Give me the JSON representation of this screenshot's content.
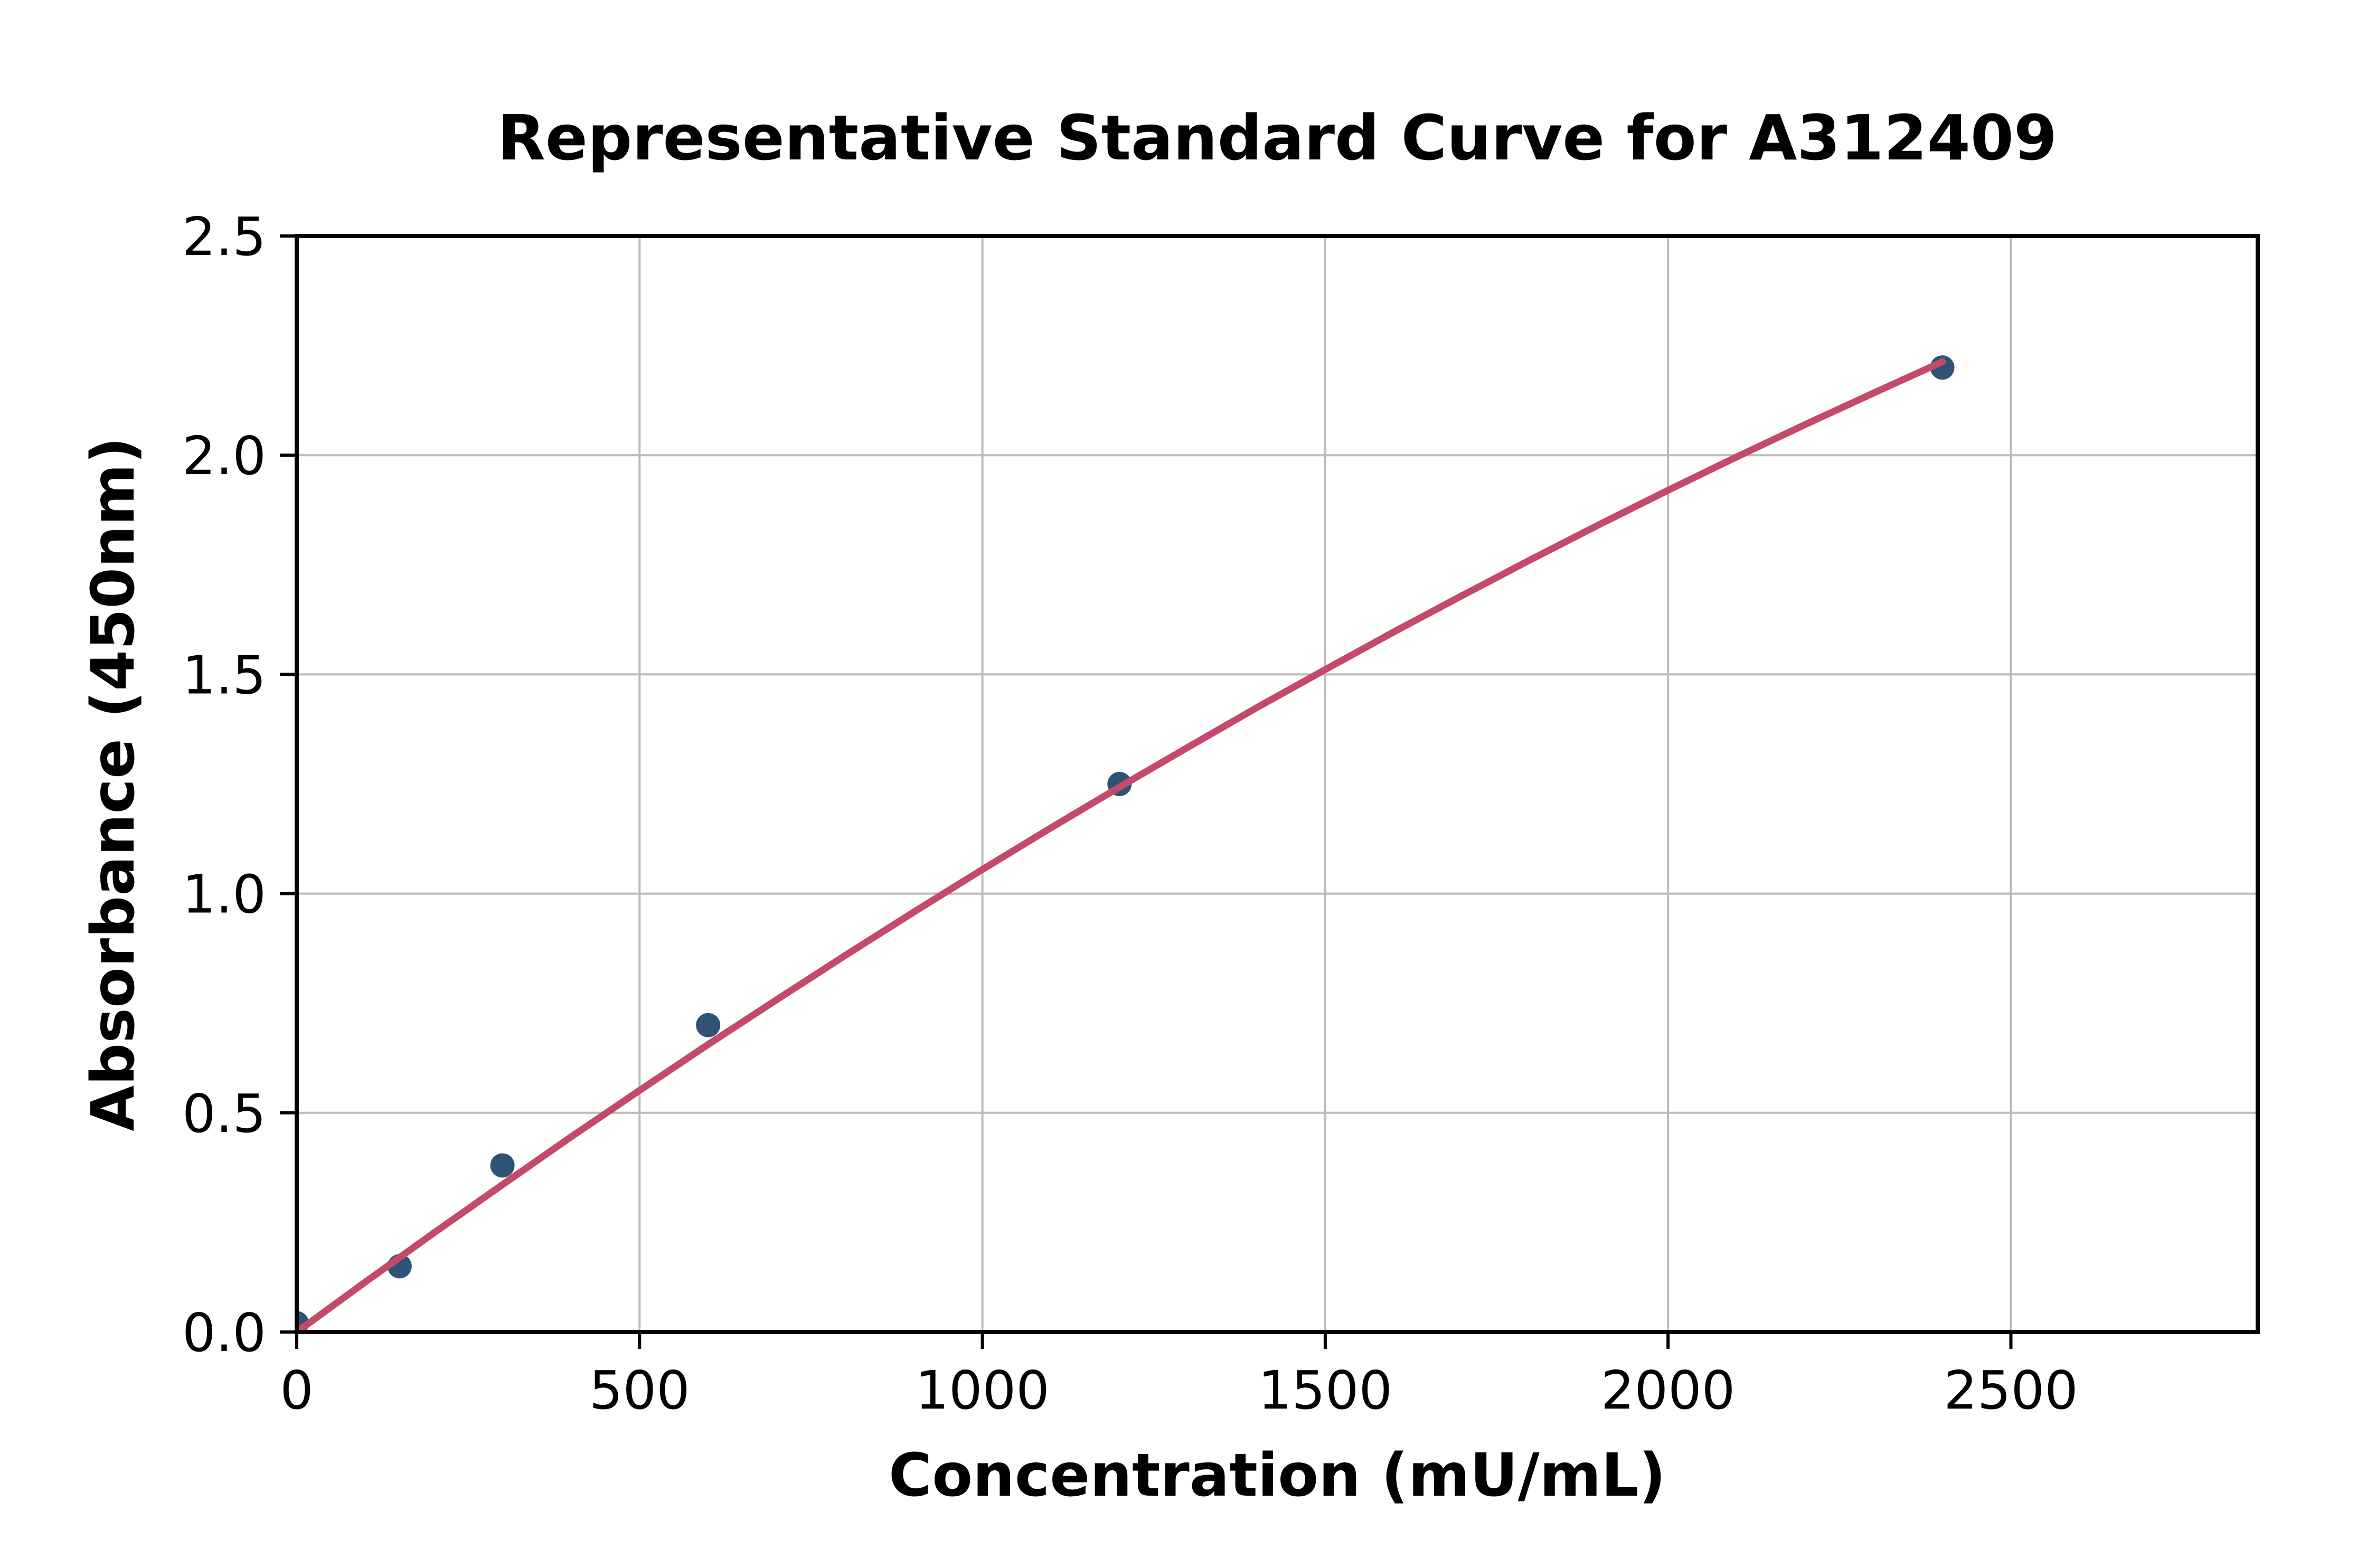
{
  "figure": {
    "title": "Representative Standard Curve for A312409"
  },
  "chart_data": {
    "type": "scatter",
    "title": "Representative Standard Curve for A312409",
    "xlabel": "Concentration (mU/mL)",
    "ylabel": "Absorbance (450nm)",
    "xlim": [
      0,
      2860
    ],
    "ylim": [
      0,
      2.5
    ],
    "grid": true,
    "legend_position": "none",
    "x_ticks": [
      {
        "v": 0,
        "label": "0"
      },
      {
        "v": 500,
        "label": "500"
      },
      {
        "v": 1000,
        "label": "1000"
      },
      {
        "v": 1500,
        "label": "1500"
      },
      {
        "v": 2000,
        "label": "2000"
      },
      {
        "v": 2500,
        "label": "2500"
      }
    ],
    "y_ticks": [
      {
        "v": 0.0,
        "label": "0.0"
      },
      {
        "v": 0.5,
        "label": "0.5"
      },
      {
        "v": 1.0,
        "label": "1.0"
      },
      {
        "v": 1.5,
        "label": "1.5"
      },
      {
        "v": 2.0,
        "label": "2.0"
      },
      {
        "v": 2.5,
        "label": "2.5"
      }
    ],
    "series": [
      {
        "name": "standards",
        "kind": "scatter",
        "points": [
          [
            0,
            0.02
          ],
          [
            150,
            0.15
          ],
          [
            300,
            0.38
          ],
          [
            600,
            0.7
          ],
          [
            1200,
            1.25
          ],
          [
            2400,
            2.2
          ]
        ]
      },
      {
        "name": "fitted-curve",
        "kind": "line",
        "points": [
          [
            0,
            0.0
          ],
          [
            100,
            0.114
          ],
          [
            200,
            0.226
          ],
          [
            300,
            0.336
          ],
          [
            400,
            0.445
          ],
          [
            500,
            0.551
          ],
          [
            600,
            0.656
          ],
          [
            700,
            0.758
          ],
          [
            800,
            0.859
          ],
          [
            900,
            0.958
          ],
          [
            1000,
            1.055
          ],
          [
            1100,
            1.15
          ],
          [
            1200,
            1.243
          ],
          [
            1300,
            1.334
          ],
          [
            1400,
            1.424
          ],
          [
            1500,
            1.511
          ],
          [
            1600,
            1.597
          ],
          [
            1700,
            1.68
          ],
          [
            1800,
            1.762
          ],
          [
            1900,
            1.842
          ],
          [
            2000,
            1.92
          ],
          [
            2100,
            1.996
          ],
          [
            2200,
            2.07
          ],
          [
            2300,
            2.142
          ],
          [
            2400,
            2.213
          ]
        ]
      }
    ],
    "colors": {
      "marker": "#2F5377",
      "line": "#C44A6B",
      "grid": "#BBBBBB",
      "axis": "#000000",
      "background": "#FFFFFF"
    }
  }
}
